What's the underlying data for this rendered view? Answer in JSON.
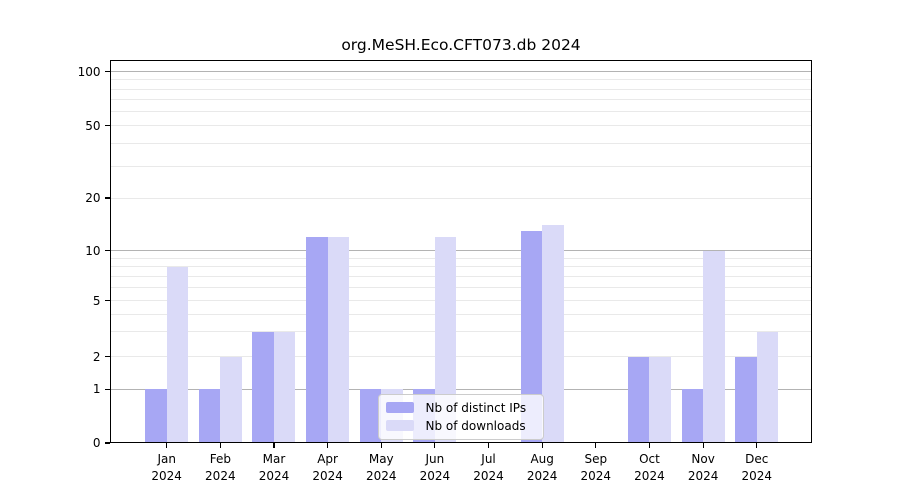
{
  "chart_data": {
    "type": "bar",
    "title": "org.MeSH.Eco.CFT073.db 2024",
    "categories": [
      "Jan",
      "Feb",
      "Mar",
      "Apr",
      "May",
      "Jun",
      "Jul",
      "Aug",
      "Sep",
      "Oct",
      "Nov",
      "Dec"
    ],
    "x_tick_sublabel": "2024",
    "series": [
      {
        "name": "Nb of distinct IPs",
        "color": "#a7a7f4",
        "values": [
          1,
          1,
          3,
          12,
          1,
          1,
          0,
          13,
          0,
          2,
          1,
          2
        ]
      },
      {
        "name": "Nb of downloads",
        "color": "#dadaf8",
        "values": [
          8,
          2,
          3,
          12,
          1,
          12,
          0,
          14,
          0,
          2,
          10,
          3
        ]
      }
    ],
    "y_axis": {
      "ticks": [
        0,
        1,
        2,
        5,
        10,
        20,
        50,
        100
      ],
      "scale": "log above 1, linear 0-1",
      "ylim": [
        0,
        115
      ]
    },
    "grid": {
      "major_values": [
        1,
        10,
        100
      ],
      "minor_values": [
        2,
        3,
        4,
        5,
        6,
        7,
        8,
        9,
        20,
        30,
        40,
        50,
        60,
        70,
        80,
        90
      ]
    },
    "legend": {
      "position": "lower center, inside plot"
    },
    "colors": {
      "major_grid": "#b3b3b3",
      "minor_grid": "#e9e9e9",
      "frame": "#000000",
      "text": "#000000",
      "legend_border": "#cccccc",
      "legend_bg": "rgba(255,255,255,0.8)"
    }
  }
}
